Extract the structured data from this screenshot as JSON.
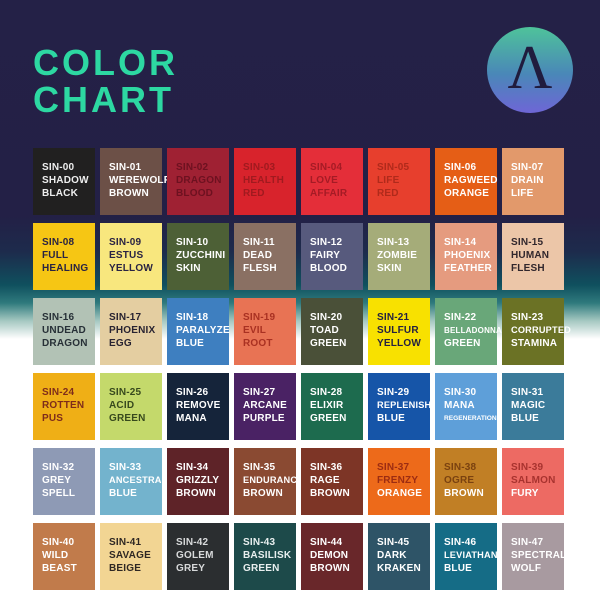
{
  "title": {
    "line1": "COLOR",
    "line2": "CHART",
    "color": "#2dd8a2"
  },
  "logo": {
    "letter": "Λ",
    "gradient_top": "#4ec39a",
    "gradient_bottom": "#6e66d6",
    "letter_color": "#201c3e"
  },
  "background": {
    "top": "#242147",
    "middle_teal": "#0f505e",
    "bottom": "#ffffff"
  },
  "swatches": [
    {
      "code": "SIN-00",
      "lines": [
        "SHADOW",
        "BLACK"
      ],
      "bg": "#212020",
      "fg": "#eeeeee"
    },
    {
      "code": "SIN-01",
      "lines": [
        "WEREWOLF",
        "BROWN"
      ],
      "bg": "#6c5047",
      "fg": "#ffffff"
    },
    {
      "code": "SIN-02",
      "lines": [
        "DRAGON",
        "BLOOD"
      ],
      "bg": "#9f2133",
      "fg": "#6d1120"
    },
    {
      "code": "SIN-03",
      "lines": [
        "HEALTH",
        "RED"
      ],
      "bg": "#d8232c",
      "fg": "#a01a1f"
    },
    {
      "code": "SIN-04",
      "lines": [
        "LOVE",
        "AFFAIR"
      ],
      "bg": "#e42e39",
      "fg": "#a51b25"
    },
    {
      "code": "SIN-05",
      "lines": [
        "LIFE",
        "RED"
      ],
      "bg": "#e73f2d",
      "fg": "#b02a1b"
    },
    {
      "code": "SIN-06",
      "lines": [
        "RAGWEED",
        "ORANGE"
      ],
      "bg": "#e55e16",
      "fg": "#ffffff"
    },
    {
      "code": "SIN-07",
      "lines": [
        "DRAIN",
        "LIFE"
      ],
      "bg": "#e2996b",
      "fg": "#ffffff"
    },
    {
      "code": "SIN-08",
      "lines": [
        "FULL",
        "HEALING"
      ],
      "bg": "#f6c614",
      "fg": "#292343"
    },
    {
      "code": "SIN-09",
      "lines": [
        "ESTUS",
        "YELLOW"
      ],
      "bg": "#f8e77e",
      "fg": "#292343"
    },
    {
      "code": "SIN-10",
      "lines": [
        "ZUCCHINI",
        "SKIN"
      ],
      "bg": "#4d6036",
      "fg": "#ffffff"
    },
    {
      "code": "SIN-11",
      "lines": [
        "DEAD",
        "FLESH"
      ],
      "bg": "#8a7063",
      "fg": "#ffffff"
    },
    {
      "code": "SIN-12",
      "lines": [
        "FAIRY",
        "BLOOD"
      ],
      "bg": "#575a7d",
      "fg": "#ffffff"
    },
    {
      "code": "SIN-13",
      "lines": [
        "ZOMBIE",
        "SKIN"
      ],
      "bg": "#a5ac79",
      "fg": "#ffffff"
    },
    {
      "code": "SIN-14",
      "lines": [
        "PHOENIX",
        "FEATHER"
      ],
      "bg": "#e59b7f",
      "fg": "#ffffff"
    },
    {
      "code": "SIN-15",
      "lines": [
        "HUMAN",
        "FLESH"
      ],
      "bg": "#ecc6a8",
      "fg": "#30262c"
    },
    {
      "code": "SIN-16",
      "lines": [
        "UNDEAD",
        "DRAGON"
      ],
      "bg": "#b2c2b5",
      "fg": "#273037"
    },
    {
      "code": "SIN-17",
      "lines": [
        "PHOENIX",
        "EGG"
      ],
      "bg": "#e4cea1",
      "fg": "#282331"
    },
    {
      "code": "SIN-18",
      "lines": [
        "PARALYZE",
        "BLUE"
      ],
      "bg": "#3e7fc0",
      "fg": "#ffffff"
    },
    {
      "code": "SIN-19",
      "lines": [
        "EVIL",
        "ROOT"
      ],
      "bg": "#e87354",
      "fg": "#a93122"
    },
    {
      "code": "SIN-20",
      "lines": [
        "TOAD",
        "GREEN"
      ],
      "bg": "#4a5038",
      "fg": "#ffffff"
    },
    {
      "code": "SIN-21",
      "lines": [
        "SULFUR",
        "YELLOW"
      ],
      "bg": "#f8e100",
      "fg": "#252141"
    },
    {
      "code": "SIN-22",
      "lines": [
        "BELLADONNA",
        "GREEN"
      ],
      "bg": "#69a779",
      "fg": "#ffffff"
    },
    {
      "code": "SIN-23",
      "lines": [
        "CORRUPTED",
        "STAMINA"
      ],
      "bg": "#6b7225",
      "fg": "#ffffff"
    },
    {
      "code": "SIN-24",
      "lines": [
        "ROTTEN",
        "PUS"
      ],
      "bg": "#efaf16",
      "fg": "#7e2c1b"
    },
    {
      "code": "SIN-25",
      "lines": [
        "ACID",
        "GREEN"
      ],
      "bg": "#c4d96b",
      "fg": "#37491d"
    },
    {
      "code": "SIN-26",
      "lines": [
        "REMOVE",
        "MANA"
      ],
      "bg": "#15243a",
      "fg": "#ffffff"
    },
    {
      "code": "SIN-27",
      "lines": [
        "ARCANE",
        "PURPLE"
      ],
      "bg": "#4a2264",
      "fg": "#ffffff"
    },
    {
      "code": "SIN-28",
      "lines": [
        "ELIXIR",
        "GREEN"
      ],
      "bg": "#1d6b4e",
      "fg": "#ffffff"
    },
    {
      "code": "SIN-29",
      "lines": [
        "REPLENISH",
        "BLUE"
      ],
      "bg": "#1655a8",
      "fg": "#ffffff"
    },
    {
      "code": "SIN-30",
      "lines": [
        "MANA",
        "REGENERATION"
      ],
      "bg": "#5e9fd9",
      "fg": "#ffffff"
    },
    {
      "code": "SIN-31",
      "lines": [
        "MAGIC",
        "BLUE"
      ],
      "bg": "#3b7b9a",
      "fg": "#ffffff"
    },
    {
      "code": "SIN-32",
      "lines": [
        "GREY",
        "SPELL"
      ],
      "bg": "#8e9ab5",
      "fg": "#ffffff"
    },
    {
      "code": "SIN-33",
      "lines": [
        "ANCESTRAL",
        "BLUE"
      ],
      "bg": "#73b3cd",
      "fg": "#ffffff"
    },
    {
      "code": "SIN-34",
      "lines": [
        "GRIZZLY",
        "BROWN"
      ],
      "bg": "#5e2328",
      "fg": "#ffffff"
    },
    {
      "code": "SIN-35",
      "lines": [
        "ENDURANCE",
        "BROWN"
      ],
      "bg": "#8a4a32",
      "fg": "#ffffff"
    },
    {
      "code": "SIN-36",
      "lines": [
        "RAGE",
        "BROWN"
      ],
      "bg": "#7d3526",
      "fg": "#ffffff"
    },
    {
      "code": "SIN-37",
      "lines": [
        "FRENZY",
        "ORANGE"
      ],
      "bg": "#ed6a1a",
      "fg": "#9c2c12",
      "fg_last": "#ffffff"
    },
    {
      "code": "SIN-38",
      "lines": [
        "OGRE",
        "BROWN"
      ],
      "bg": "#c17f25",
      "fg": "#7a4210",
      "fg_last": "#ffffff"
    },
    {
      "code": "SIN-39",
      "lines": [
        "SALMON",
        "FURY"
      ],
      "bg": "#ed6a63",
      "fg": "#a8332f",
      "fg_last": "#ffffff"
    },
    {
      "code": "SIN-40",
      "lines": [
        "WILD",
        "BEAST"
      ],
      "bg": "#c17b4b",
      "fg": "#ffffff"
    },
    {
      "code": "SIN-41",
      "lines": [
        "SAVAGE",
        "BEIGE"
      ],
      "bg": "#f2d593",
      "fg": "#2e2723"
    },
    {
      "code": "SIN-42",
      "lines": [
        "GOLEM",
        "GREY"
      ],
      "bg": "#2b2e30",
      "fg": "#d8dadb"
    },
    {
      "code": "SIN-43",
      "lines": [
        "BASILISK",
        "GREEN"
      ],
      "bg": "#1d4a4a",
      "fg": "#e8efef"
    },
    {
      "code": "SIN-44",
      "lines": [
        "DEMON",
        "BROWN"
      ],
      "bg": "#69272a",
      "fg": "#ffffff"
    },
    {
      "code": "SIN-45",
      "lines": [
        "DARK",
        "KRAKEN"
      ],
      "bg": "#2e5467",
      "fg": "#ffffff"
    },
    {
      "code": "SIN-46",
      "lines": [
        "LEVIATHAN",
        "BLUE"
      ],
      "bg": "#156c86",
      "fg": "#ffffff"
    },
    {
      "code": "SIN-47",
      "lines": [
        "SPECTRAL",
        "WOLF"
      ],
      "bg": "#a89aa0",
      "fg": "#ffffff"
    }
  ]
}
